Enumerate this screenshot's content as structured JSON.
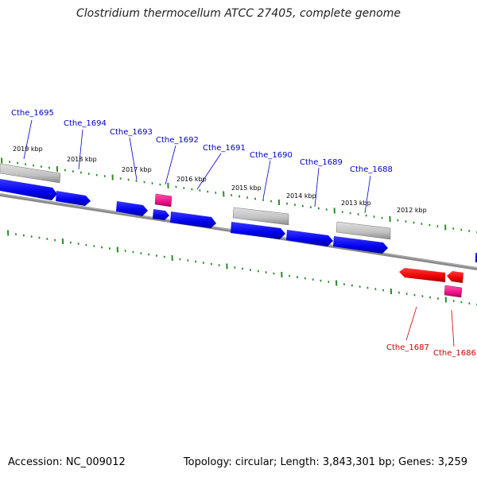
{
  "title": "Clostridium thermocellum ATCC 27405, complete genome",
  "accession_text": "Accession: NC_009012",
  "topology_text": "Topology: circular; Length: 3,843,301 bp; Genes: 3,259",
  "colors": {
    "forward_cds": "#0000ee",
    "reverse_cds": "#ee0000",
    "rna": "#ee1188",
    "other": "#c0c0c0",
    "backbone": "#808080",
    "ticks": "#2a8a2a",
    "forward_label": "#0000c8",
    "reverse_label": "#cc0000"
  },
  "scale_labels": [
    "2019 kbp",
    "2018 kbp",
    "2017 kbp",
    "2016 kbp",
    "2015 kbp",
    "2014 kbp",
    "2013 kbp",
    "2012 kbp"
  ],
  "gene_labels": {
    "forward": [
      "Cthe_1695",
      "Cthe_1694",
      "Cthe_1693",
      "Cthe_1692",
      "Cthe_1691",
      "Cthe_1690",
      "Cthe_1689",
      "Cthe_1688"
    ],
    "reverse": [
      "Cthe_1687",
      "Cthe_1686"
    ]
  }
}
